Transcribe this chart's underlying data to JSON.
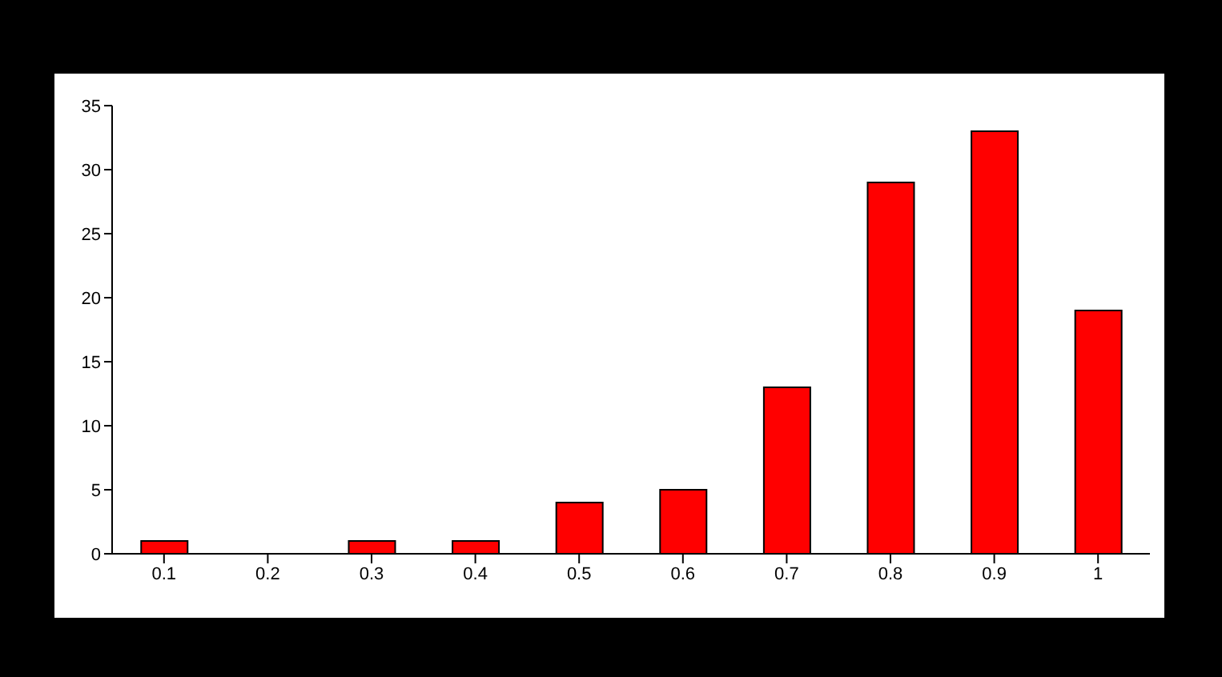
{
  "chart_data": {
    "type": "bar",
    "categories": [
      "0.1",
      "0.2",
      "0.3",
      "0.4",
      "0.5",
      "0.6",
      "0.7",
      "0.8",
      "0.9",
      "1"
    ],
    "values": [
      1,
      0,
      1,
      1,
      4,
      5,
      13,
      29,
      33,
      19
    ],
    "color": "#ff0000",
    "ylim": [
      0,
      35
    ],
    "yticks": [
      0,
      5,
      10,
      15,
      20,
      25,
      30,
      35
    ],
    "grid": false,
    "legend": false
  }
}
